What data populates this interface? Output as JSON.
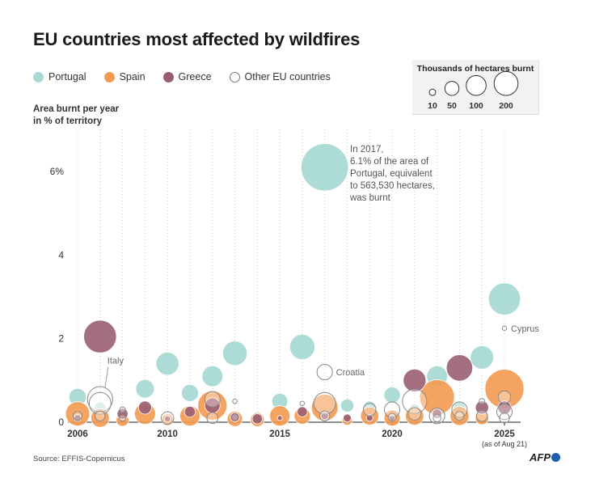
{
  "title": "EU countries most affected by wildfires",
  "legend": [
    {
      "label": "Portugal",
      "color": "#a8dad3"
    },
    {
      "label": "Spain",
      "color": "#f39a4f"
    },
    {
      "label": "Greece",
      "color": "#9a5e73"
    },
    {
      "label": "Other EU countries",
      "color": "#ffffff"
    }
  ],
  "size_key": {
    "title": "Thousands of hectares burnt",
    "sizes": [
      10,
      50,
      100,
      200
    ]
  },
  "y_axis_label_line1": "Area burnt per year",
  "y_axis_label_line2": "in % of territory",
  "source": "Source: EFFIS-Copernicus",
  "logo": "AFP",
  "chart_data": {
    "type": "scatter",
    "title": "EU countries most affected by wildfires",
    "xlabel": "",
    "ylabel": "Area burnt per year in % of territory",
    "xlim": [
      2006,
      2025
    ],
    "ylim": [
      0,
      7
    ],
    "y_ticks": [
      {
        "value": 0,
        "label": "0"
      },
      {
        "value": 2,
        "label": "2"
      },
      {
        "value": 4,
        "label": "4"
      },
      {
        "value": 6,
        "label": "6%"
      }
    ],
    "x_ticks": [
      {
        "value": 2006,
        "label": "2006"
      },
      {
        "value": 2010,
        "label": "2010"
      },
      {
        "value": 2015,
        "label": "2015"
      },
      {
        "value": 2020,
        "label": "2020"
      },
      {
        "value": 2025,
        "label": "2025"
      }
    ],
    "x_tick_note": "(as of Aug 21)",
    "size_unit": "thousands of hectares burnt",
    "series": [
      {
        "name": "Portugal",
        "color": "#a8dad3",
        "points": [
          {
            "year": 2006,
            "pct": 0.6,
            "kha": 76
          },
          {
            "year": 2007,
            "pct": 0.35,
            "kha": 32
          },
          {
            "year": 2008,
            "pct": 0.15,
            "kha": 17
          },
          {
            "year": 2009,
            "pct": 0.8,
            "kha": 87
          },
          {
            "year": 2010,
            "pct": 1.4,
            "kha": 133
          },
          {
            "year": 2011,
            "pct": 0.7,
            "kha": 73
          },
          {
            "year": 2012,
            "pct": 1.1,
            "kha": 110
          },
          {
            "year": 2013,
            "pct": 1.65,
            "kha": 152
          },
          {
            "year": 2014,
            "pct": 0.15,
            "kha": 19
          },
          {
            "year": 2015,
            "pct": 0.5,
            "kha": 64
          },
          {
            "year": 2016,
            "pct": 1.8,
            "kha": 161
          },
          {
            "year": 2017,
            "pct": 6.1,
            "kha": 564
          },
          {
            "year": 2018,
            "pct": 0.4,
            "kha": 44
          },
          {
            "year": 2019,
            "pct": 0.35,
            "kha": 42
          },
          {
            "year": 2020,
            "pct": 0.65,
            "kha": 67
          },
          {
            "year": 2021,
            "pct": 0.3,
            "kha": 28
          },
          {
            "year": 2022,
            "pct": 1.1,
            "kha": 110
          },
          {
            "year": 2023,
            "pct": 0.35,
            "kha": 34
          },
          {
            "year": 2024,
            "pct": 1.55,
            "kha": 137
          },
          {
            "year": 2025,
            "pct": 2.95,
            "kha": 260
          }
        ]
      },
      {
        "name": "Spain",
        "color": "#f39a4f",
        "points": [
          {
            "year": 2006,
            "pct": 0.2,
            "kha": 148
          },
          {
            "year": 2007,
            "pct": 0.1,
            "kha": 86
          },
          {
            "year": 2008,
            "pct": 0.05,
            "kha": 40
          },
          {
            "year": 2009,
            "pct": 0.2,
            "kha": 111
          },
          {
            "year": 2010,
            "pct": 0.06,
            "kha": 33
          },
          {
            "year": 2011,
            "pct": 0.15,
            "kha": 103
          },
          {
            "year": 2012,
            "pct": 0.4,
            "kha": 215
          },
          {
            "year": 2013,
            "pct": 0.08,
            "kha": 59
          },
          {
            "year": 2014,
            "pct": 0.06,
            "kha": 48
          },
          {
            "year": 2015,
            "pct": 0.15,
            "kha": 104
          },
          {
            "year": 2016,
            "pct": 0.15,
            "kha": 67
          },
          {
            "year": 2017,
            "pct": 0.35,
            "kha": 178
          },
          {
            "year": 2018,
            "pct": 0.05,
            "kha": 26
          },
          {
            "year": 2019,
            "pct": 0.15,
            "kha": 83
          },
          {
            "year": 2020,
            "pct": 0.1,
            "kha": 66
          },
          {
            "year": 2021,
            "pct": 0.15,
            "kha": 85
          },
          {
            "year": 2022,
            "pct": 0.6,
            "kha": 306
          },
          {
            "year": 2023,
            "pct": 0.15,
            "kha": 91
          },
          {
            "year": 2024,
            "pct": 0.1,
            "kha": 45
          },
          {
            "year": 2025,
            "pct": 0.8,
            "kha": 383
          }
        ]
      },
      {
        "name": "Greece",
        "color": "#9a5e73",
        "points": [
          {
            "year": 2006,
            "pct": 0.1,
            "kha": 12
          },
          {
            "year": 2007,
            "pct": 2.05,
            "kha": 271
          },
          {
            "year": 2008,
            "pct": 0.2,
            "kha": 30
          },
          {
            "year": 2009,
            "pct": 0.35,
            "kha": 43
          },
          {
            "year": 2010,
            "pct": 0.08,
            "kha": 9
          },
          {
            "year": 2011,
            "pct": 0.25,
            "kha": 30
          },
          {
            "year": 2012,
            "pct": 0.4,
            "kha": 59
          },
          {
            "year": 2013,
            "pct": 0.12,
            "kha": 21
          },
          {
            "year": 2014,
            "pct": 0.08,
            "kha": 26
          },
          {
            "year": 2015,
            "pct": 0.1,
            "kha": 6
          },
          {
            "year": 2016,
            "pct": 0.25,
            "kha": 26
          },
          {
            "year": 2017,
            "pct": 0.15,
            "kha": 14
          },
          {
            "year": 2018,
            "pct": 0.1,
            "kha": 16
          },
          {
            "year": 2019,
            "pct": 0.1,
            "kha": 11
          },
          {
            "year": 2020,
            "pct": 0.1,
            "kha": 9
          },
          {
            "year": 2021,
            "pct": 1.0,
            "kha": 131
          },
          {
            "year": 2022,
            "pct": 0.2,
            "kha": 23
          },
          {
            "year": 2023,
            "pct": 1.3,
            "kha": 175
          },
          {
            "year": 2024,
            "pct": 0.35,
            "kha": 44
          },
          {
            "year": 2025,
            "pct": 0.35,
            "kha": 45
          }
        ]
      },
      {
        "name": "Other EU countries",
        "color": "#ffffff",
        "points": [
          {
            "year": 2006,
            "pct": 0.15,
            "kha": 20
          },
          {
            "year": 2007,
            "pct": 0.55,
            "kha": 160
          },
          {
            "year": 2007,
            "pct": 0.45,
            "kha": 120
          },
          {
            "year": 2007,
            "pct": 0.15,
            "kha": 25
          },
          {
            "year": 2008,
            "pct": 0.3,
            "kha": 8
          },
          {
            "year": 2008,
            "pct": 0.1,
            "kha": 10
          },
          {
            "year": 2010,
            "pct": 0.1,
            "kha": 40
          },
          {
            "year": 2012,
            "pct": 0.55,
            "kha": 60
          },
          {
            "year": 2012,
            "pct": 0.1,
            "kha": 30
          },
          {
            "year": 2013,
            "pct": 0.5,
            "kha": 5
          },
          {
            "year": 2013,
            "pct": 0.12,
            "kha": 10
          },
          {
            "year": 2016,
            "pct": 0.45,
            "kha": 5
          },
          {
            "year": 2017,
            "pct": 1.2,
            "kha": 60
          },
          {
            "year": 2017,
            "pct": 0.45,
            "kha": 120
          },
          {
            "year": 2017,
            "pct": 0.15,
            "kha": 25
          },
          {
            "year": 2019,
            "pct": 0.3,
            "kha": 40
          },
          {
            "year": 2020,
            "pct": 0.3,
            "kha": 60
          },
          {
            "year": 2020,
            "pct": 0.12,
            "kha": 15
          },
          {
            "year": 2021,
            "pct": 0.5,
            "kha": 150
          },
          {
            "year": 2021,
            "pct": 0.2,
            "kha": 40
          },
          {
            "year": 2022,
            "pct": 0.15,
            "kha": 60
          },
          {
            "year": 2022,
            "pct": 0.1,
            "kha": 15
          },
          {
            "year": 2023,
            "pct": 0.3,
            "kha": 60
          },
          {
            "year": 2023,
            "pct": 0.15,
            "kha": 20
          },
          {
            "year": 2024,
            "pct": 0.5,
            "kha": 8
          },
          {
            "year": 2024,
            "pct": 0.15,
            "kha": 30
          },
          {
            "year": 2025,
            "pct": 2.25,
            "kha": 5
          },
          {
            "year": 2025,
            "pct": 0.6,
            "kha": 40
          },
          {
            "year": 2025,
            "pct": 0.25,
            "kha": 60
          },
          {
            "year": 2025,
            "pct": 0.1,
            "kha": 25
          }
        ]
      }
    ],
    "annotations": [
      {
        "text_lines": [
          "In 2017,",
          "6.1% of the area of",
          "Portugal, equivalent",
          "to 563,530 hectares,",
          "was burnt"
        ],
        "year": 2017,
        "pct": 6.1
      },
      {
        "text": "Italy",
        "year": 2007,
        "pct": 0.55
      },
      {
        "text": "Croatia",
        "year": 2017,
        "pct": 1.2
      },
      {
        "text": "Cyprus",
        "year": 2025,
        "pct": 2.25
      }
    ]
  }
}
